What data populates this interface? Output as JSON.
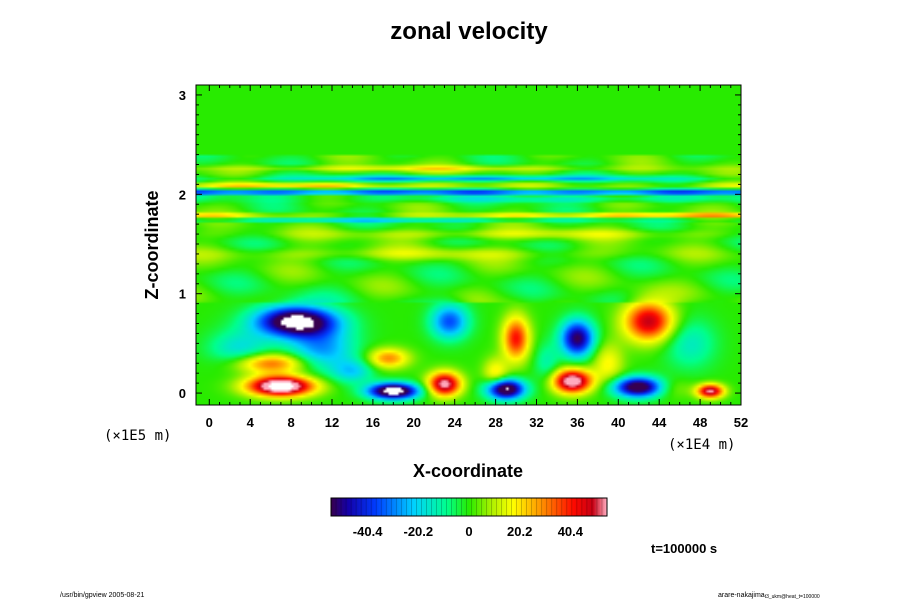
{
  "chart_data": {
    "type": "heatmap",
    "title": "zonal velocity",
    "xlabel": "X-coordinate",
    "ylabel": "Z-coordinate",
    "x_scale_note": "(×1E4 m)",
    "y_scale_note": "(×1E5 m)",
    "xlim": [
      -1.3,
      52
    ],
    "ylim": [
      -0.12,
      3.1
    ],
    "x_ticks": [
      "0",
      "4",
      "8",
      "12",
      "16",
      "20",
      "24",
      "28",
      "32",
      "36",
      "40",
      "44",
      "48",
      "52"
    ],
    "y_ticks": [
      "0",
      "1",
      "2",
      "3"
    ],
    "colorbar": {
      "range": [
        -55,
        55
      ],
      "ticks": [
        "-40.4",
        "-20.2",
        "0",
        "20.2",
        "40.4"
      ],
      "tick_values": [
        -40.4,
        -20.2,
        0,
        20.2,
        40.4
      ]
    },
    "time_label": "t=100000 s",
    "features": [
      {
        "kind": "positive-cell",
        "x": 7,
        "z": 0.08,
        "value": 70
      },
      {
        "kind": "negative-cell",
        "x": 18,
        "z": 0.02,
        "value": -70
      },
      {
        "kind": "positive-cell",
        "x": 23,
        "z": 0.1,
        "value": 58
      },
      {
        "kind": "negative-cell",
        "x": 29,
        "z": 0.05,
        "value": -65
      },
      {
        "kind": "positive-cell",
        "x": 35.5,
        "z": 0.12,
        "value": 62
      },
      {
        "kind": "negative-cell",
        "x": 42,
        "z": 0.06,
        "value": -62
      },
      {
        "kind": "positive-cell",
        "x": 49,
        "z": 0.03,
        "value": 55
      },
      {
        "kind": "negative-cell",
        "x": 8.5,
        "z": 0.7,
        "value": -70
      },
      {
        "kind": "negative-cell",
        "x": 23.5,
        "z": 0.72,
        "value": -35
      },
      {
        "kind": "positive-cell",
        "x": 30,
        "z": 0.55,
        "value": 40
      },
      {
        "kind": "negative-cell",
        "x": 36,
        "z": 0.55,
        "value": -52
      },
      {
        "kind": "positive-cell",
        "x": 43,
        "z": 0.7,
        "value": 48
      },
      {
        "kind": "negative-band",
        "z": 2.02,
        "value": -35
      },
      {
        "kind": "positive-band",
        "z": 1.79,
        "value": 30
      }
    ]
  },
  "footer": {
    "left": "/usr/bin/gpview 2005-08-21",
    "right_main": "arare-nakajima",
    "right_sub": "t3_ukm@heat_t=100000"
  }
}
